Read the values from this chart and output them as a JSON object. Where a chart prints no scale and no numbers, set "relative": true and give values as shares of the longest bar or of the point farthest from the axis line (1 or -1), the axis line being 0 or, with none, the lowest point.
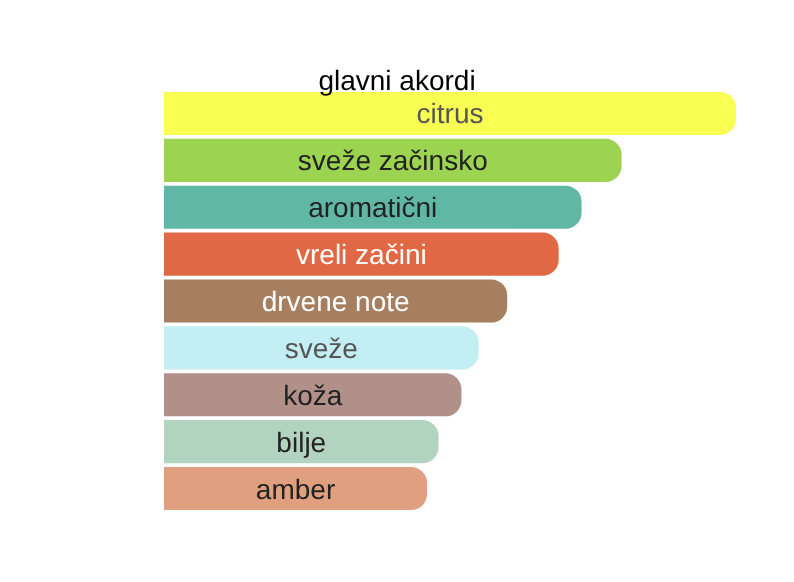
{
  "chart_data": {
    "type": "bar",
    "orientation": "horizontal",
    "relative": true,
    "title": "glavni akordi",
    "categories": [
      "citrus",
      "sveže začinsko",
      "aromatični",
      "vreli začini",
      "drvene note",
      "sveže",
      "koža",
      "bilje",
      "amber"
    ],
    "values": [
      1,
      0.8,
      0.73,
      0.69,
      0.6,
      0.55,
      0.52,
      0.48,
      0.46
    ],
    "colors": [
      "#f9ff52",
      "#9cd350",
      "#61b7a5",
      "#e06845",
      "#a67f60",
      "#c3eef4",
      "#b09088",
      "#b2d3be",
      "#e0a07f"
    ],
    "tick_labels": false
  }
}
